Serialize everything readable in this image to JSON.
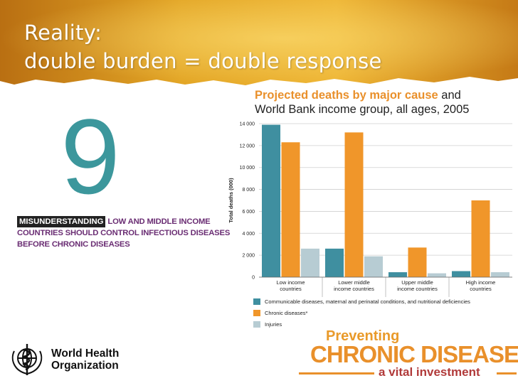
{
  "slide": {
    "title_line1": "Reality:",
    "title_line2": "double burden = double response"
  },
  "myth": {
    "number": "9",
    "tag": "MISUNDERSTANDING",
    "line1_rest": "LOW AND MIDDLE INCOME",
    "line2": "COUNTRIES SHOULD CONTROL INFECTIOUS DISEASES",
    "line3": "BEFORE CHRONIC DISEASES"
  },
  "chart_data": {
    "type": "bar",
    "title_highlight": "Projected deaths by major cause",
    "title_rest1": " and",
    "title_line2": "World Bank income group, all ages, 2005",
    "ylabel": "Total deaths (000)",
    "ylim": [
      0,
      14000
    ],
    "y_ticks": [
      0,
      2000,
      4000,
      6000,
      8000,
      10000,
      12000,
      14000
    ],
    "y_tick_labels": [
      "0",
      "2 000",
      "4 000",
      "6 000",
      "8 000",
      "10 000",
      "12 000",
      "14 000"
    ],
    "categories": [
      [
        "Low income",
        "countries"
      ],
      [
        "Lower middle",
        "income countries"
      ],
      [
        "Upper middle",
        "income countries"
      ],
      [
        "High income",
        "countries"
      ]
    ],
    "series": [
      {
        "name": "Communicable diseases, maternal and perinatal conditions, and nutritional deficiencies",
        "color": "#3f8fa0",
        "values": [
          13900,
          2600,
          450,
          550
        ]
      },
      {
        "name": "Chronic diseases*",
        "color": "#f0962a",
        "values": [
          12300,
          13200,
          2700,
          7000
        ]
      },
      {
        "name": "Injuries",
        "color": "#b7ccd3",
        "values": [
          2600,
          1900,
          350,
          450
        ]
      }
    ],
    "grid": true,
    "legend_position": "bottom"
  },
  "footer": {
    "who_line1": "World Health",
    "who_line2": "Organization",
    "pcd_line1": "Preventing",
    "pcd_line2": "CHRONIC DISEASES",
    "pcd_line3": "a vital investment"
  },
  "colors": {
    "banner": "#e9a21f",
    "accent_teal": "#3c979c",
    "myth_purple": "#6a2d73"
  }
}
